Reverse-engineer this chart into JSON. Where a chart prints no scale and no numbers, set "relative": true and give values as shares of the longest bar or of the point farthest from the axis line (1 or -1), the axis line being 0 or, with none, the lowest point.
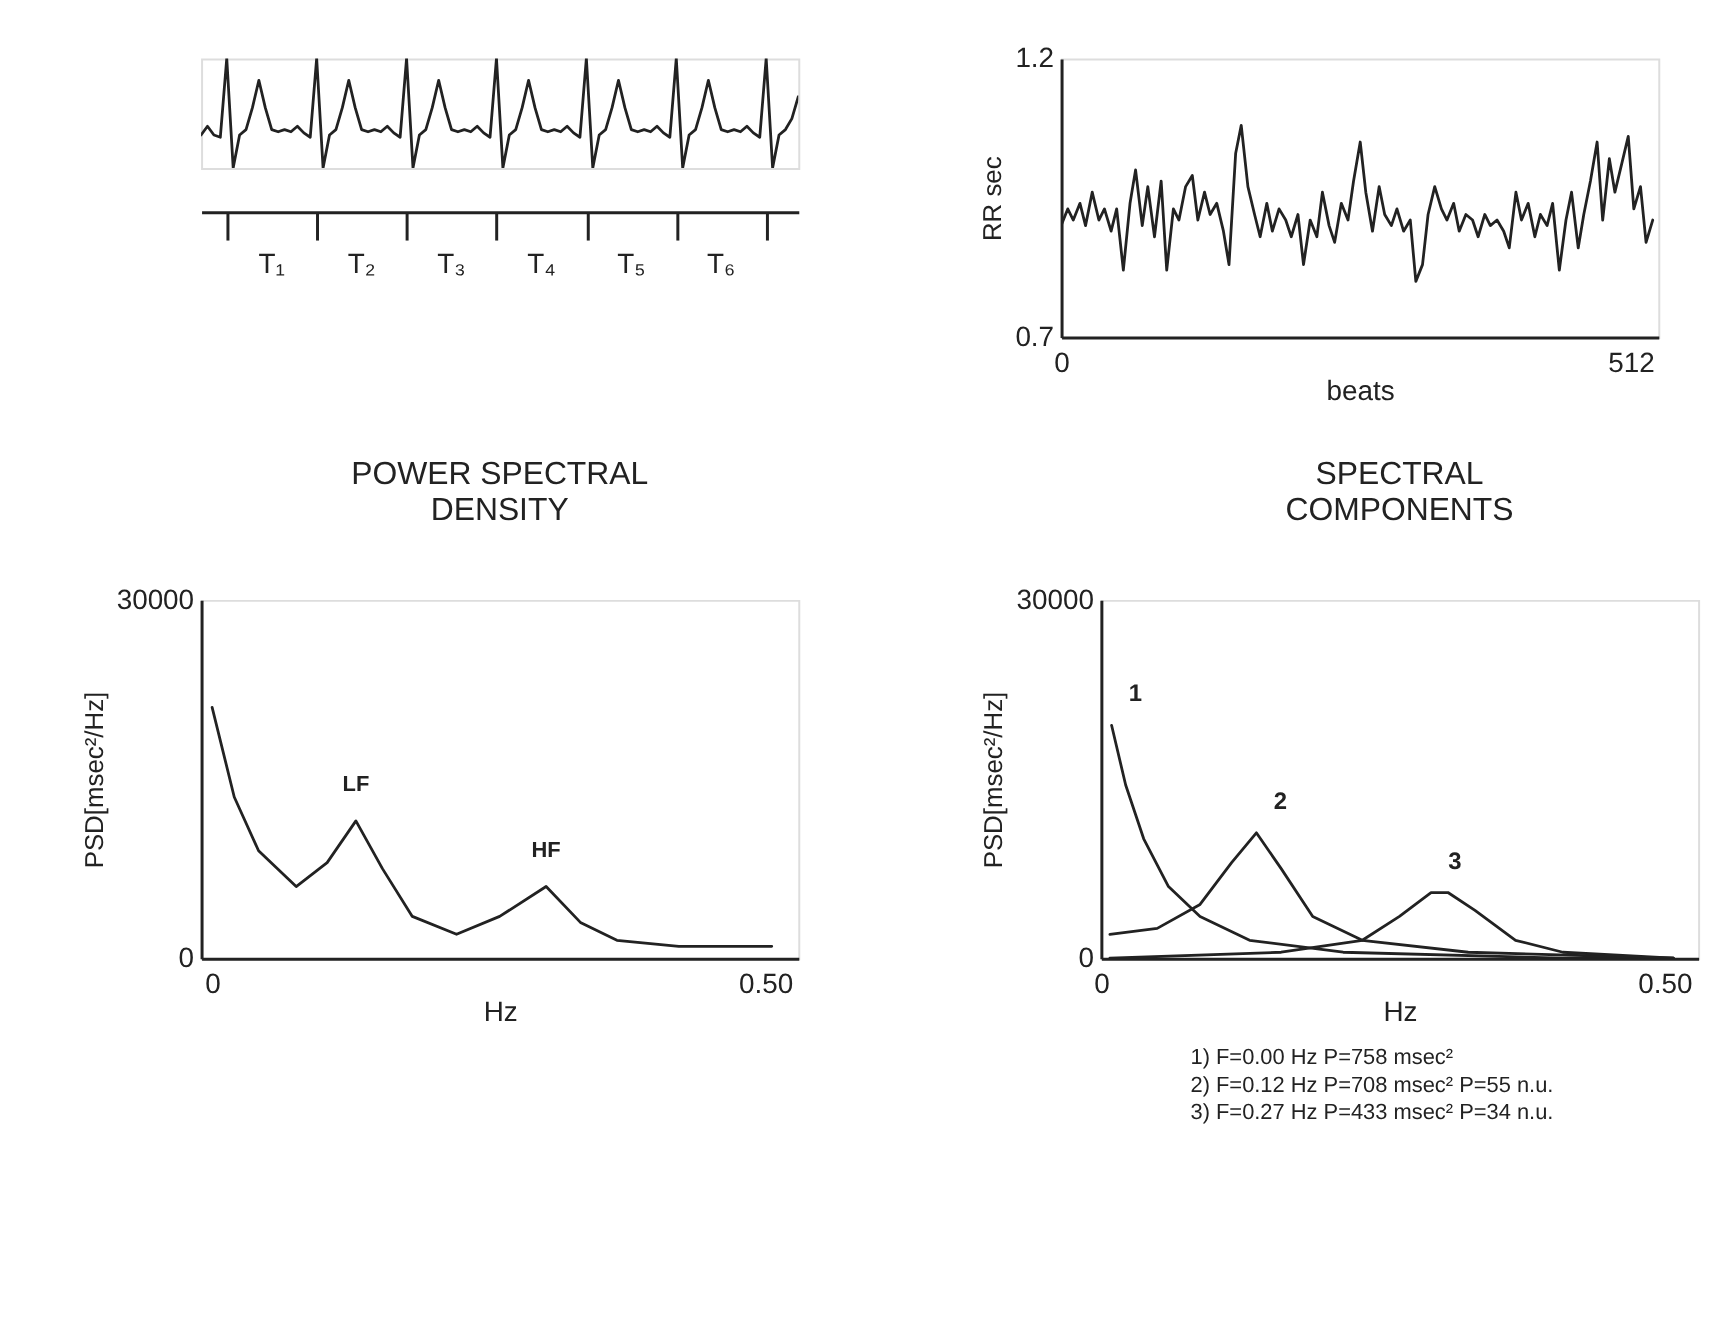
{
  "chart_data": [
    {
      "type": "line",
      "relative": true,
      "tick_labels": false,
      "grid": false,
      "categories": [
        null,
        null,
        null,
        null,
        null,
        null,
        null,
        null,
        null,
        null,
        null,
        null,
        null,
        null,
        null,
        null,
        null,
        null,
        null,
        null,
        null,
        null,
        null,
        null,
        null,
        null,
        null,
        null,
        null,
        null,
        null,
        null,
        null,
        null,
        null,
        null,
        null,
        null,
        null,
        null,
        null,
        null,
        null,
        null,
        null,
        null,
        null,
        null,
        null,
        null,
        null,
        null,
        null,
        null,
        null,
        null,
        null,
        null,
        null,
        null,
        null,
        null,
        null,
        null,
        null,
        null,
        null,
        null,
        null,
        null,
        null,
        null,
        null,
        null,
        null,
        null,
        null,
        null,
        null,
        null,
        null,
        null,
        null,
        null,
        null,
        null,
        null,
        null,
        null,
        null,
        null,
        null,
        null,
        null
      ],
      "series": [
        {
          "color": "#222222",
          "values": [
            0.3,
            0.38,
            0.3,
            0.28,
            1.0,
            0.0,
            0.3,
            0.35,
            0.55,
            0.8,
            0.55,
            0.35,
            0.33,
            0.35,
            0.33,
            0.38,
            0.32,
            0.28,
            1.0,
            0.0,
            0.3,
            0.35,
            0.55,
            0.8,
            0.55,
            0.35,
            0.33,
            0.35,
            0.33,
            0.38,
            0.32,
            0.28,
            1.0,
            0.0,
            0.3,
            0.35,
            0.55,
            0.8,
            0.55,
            0.35,
            0.33,
            0.35,
            0.33,
            0.38,
            0.32,
            0.28,
            1.0,
            0.0,
            0.3,
            0.35,
            0.55,
            0.8,
            0.55,
            0.35,
            0.33,
            0.35,
            0.33,
            0.38,
            0.32,
            0.28,
            1.0,
            0.0,
            0.3,
            0.35,
            0.55,
            0.8,
            0.55,
            0.35,
            0.33,
            0.35,
            0.33,
            0.38,
            0.32,
            0.28,
            1.0,
            0.0,
            0.3,
            0.35,
            0.55,
            0.8,
            0.55,
            0.35,
            0.33,
            0.35,
            0.33,
            0.38,
            0.32,
            0.28,
            1.0,
            0.0,
            0.3,
            0.35,
            0.45,
            0.65
          ]
        }
      ],
      "annotations": [
        "T₁",
        "T₂",
        "T₃",
        "T₄",
        "T₅",
        "T₆"
      ]
    },
    {
      "type": "line",
      "xlabel": "beats",
      "ylabel": "RR sec",
      "xlim": [
        0,
        537
      ],
      "xticks": [
        0,
        512
      ],
      "ylim": [
        0.7,
        1.2
      ],
      "yticks": [
        0.7,
        1.2
      ],
      "grid": false,
      "series": [
        {
          "color": "#222222",
          "x": [
            0,
            6,
            11,
            17,
            22,
            28,
            34,
            39,
            45,
            50,
            56,
            62,
            67,
            73,
            78,
            84,
            90,
            95,
            101,
            106,
            112,
            118,
            123,
            129,
            134,
            140,
            146,
            151,
            157,
            162,
            168,
            174,
            179,
            185,
            190,
            196,
            202,
            207,
            213,
            218,
            224,
            230,
            235,
            241,
            246,
            252,
            258,
            263,
            269,
            274,
            280,
            286,
            291,
            297,
            302,
            308,
            314,
            319,
            325,
            330,
            336,
            342,
            347,
            353,
            358,
            364,
            370,
            375,
            381,
            386,
            392,
            398,
            403,
            409,
            414,
            420,
            426,
            431,
            437,
            442,
            448,
            454,
            459,
            465,
            470,
            476,
            482,
            487,
            493,
            498,
            504,
            510,
            515,
            521,
            526,
            532
          ],
          "values": [
            0.9,
            0.93,
            0.91,
            0.94,
            0.9,
            0.96,
            0.91,
            0.93,
            0.89,
            0.93,
            0.82,
            0.94,
            1.0,
            0.9,
            0.97,
            0.88,
            0.98,
            0.82,
            0.93,
            0.91,
            0.97,
            0.99,
            0.91,
            0.96,
            0.92,
            0.94,
            0.89,
            0.83,
            1.03,
            1.08,
            0.97,
            0.92,
            0.88,
            0.94,
            0.89,
            0.93,
            0.91,
            0.88,
            0.92,
            0.83,
            0.91,
            0.88,
            0.96,
            0.9,
            0.87,
            0.94,
            0.91,
            0.98,
            1.05,
            0.96,
            0.89,
            0.97,
            0.92,
            0.9,
            0.93,
            0.89,
            0.91,
            0.8,
            0.83,
            0.92,
            0.97,
            0.93,
            0.91,
            0.94,
            0.89,
            0.92,
            0.91,
            0.88,
            0.92,
            0.9,
            0.91,
            0.89,
            0.86,
            0.96,
            0.91,
            0.94,
            0.88,
            0.92,
            0.9,
            0.94,
            0.82,
            0.91,
            0.96,
            0.86,
            0.92,
            0.98,
            1.05,
            0.91,
            1.02,
            0.96,
            1.01,
            1.06,
            0.93,
            0.97,
            0.87,
            0.91
          ]
        }
      ]
    },
    {
      "type": "line",
      "title": "POWER SPECTRAL DENSITY",
      "xlabel": "Hz",
      "ylabel": "PSD[msec²/Hz]",
      "xlim": [
        -0.01,
        0.53
      ],
      "xticks": [
        0,
        {
          "value": 0.5,
          "label": "0.50"
        }
      ],
      "ylim": [
        0,
        30000
      ],
      "yticks": [
        0,
        30000
      ],
      "grid": false,
      "series": [
        {
          "color": "#222222",
          "x": [
            0,
            0.02,
            0.042,
            0.076,
            0.104,
            0.13,
            0.154,
            0.181,
            0.221,
            0.26,
            0.302,
            0.333,
            0.366,
            0.422,
            0.506
          ],
          "values": [
            21000,
            13500,
            9000,
            6000,
            8000,
            11500,
            7500,
            3500,
            2000,
            3500,
            6000,
            3000,
            1500,
            1000,
            1000
          ]
        }
      ],
      "annotations": [
        "LF",
        "HF"
      ]
    },
    {
      "type": "line",
      "title": "SPECTRAL  COMPONENTS",
      "xlabel": "Hz",
      "ylabel": "PSD[msec²/Hz]",
      "xlim": [
        0,
        0.53
      ],
      "xticks": [
        0,
        {
          "value": 0.5,
          "label": "0.50"
        }
      ],
      "ylim": [
        0,
        30000
      ],
      "yticks": [
        0,
        30000
      ],
      "grid": false,
      "series": [
        {
          "name": "1",
          "color": "#222222",
          "x": [
            0.0095,
            0.022,
            0.038,
            0.06,
            0.088,
            0.132,
            0.215,
            0.41,
            0.508
          ],
          "values": [
            19500,
            14500,
            10000,
            6000,
            3500,
            1500,
            500,
            0,
            0
          ]
        },
        {
          "name": "2",
          "color": "#222222",
          "x": [
            0.008,
            0.05,
            0.088,
            0.116,
            0.138,
            0.16,
            0.188,
            0.232,
            0.326,
            0.508
          ],
          "values": [
            2000,
            2500,
            4500,
            8000,
            10500,
            7500,
            3500,
            1500,
            500,
            0
          ]
        },
        {
          "name": "3",
          "color": "#222222",
          "x": [
            0.008,
            0.16,
            0.232,
            0.265,
            0.293,
            0.308,
            0.332,
            0.368,
            0.41,
            0.508
          ],
          "values": [
            0,
            500,
            1500,
            3500,
            5500,
            5500,
            4000,
            1500,
            500,
            0
          ]
        }
      ],
      "annotations": [
        "1)  F=0.00 Hz    P=758 msec²",
        "2)  F=0.12 Hz    P=708 msec²    P=55 n.u.",
        "3)  F=0.27 Hz    P=433 msec²    P=34 n.u."
      ]
    }
  ]
}
